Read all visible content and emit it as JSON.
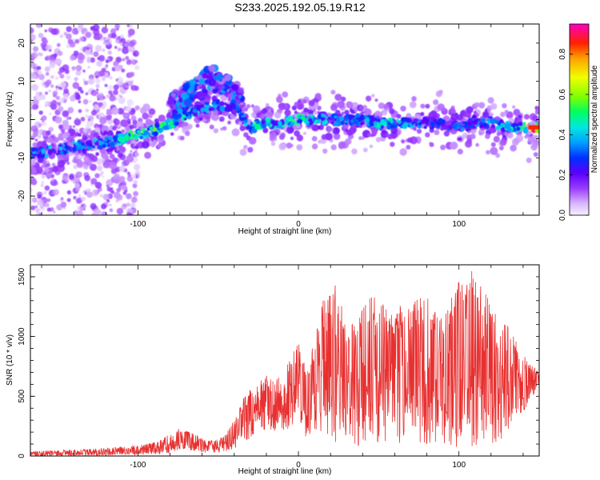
{
  "title": "S233.2025.192.05.19.R12",
  "chart_data": [
    {
      "type": "heatmap",
      "xlabel": "Height of straight line (km)",
      "ylabel": "Frequency (Hz)",
      "xlim": [
        -167,
        150
      ],
      "ylim": [
        -25,
        25
      ],
      "xticks": [
        "-100",
        "0",
        "100"
      ],
      "yticks": [
        "-20",
        "-10",
        "0",
        "10",
        "20"
      ],
      "colorbar": {
        "label": "Normalized spectral amplitude",
        "range": [
          0,
          0.95
        ],
        "ticks": [
          "0.0",
          "0.2",
          "0.4",
          "0.6",
          "0.8"
        ]
      },
      "ridge": {
        "x": [
          -167,
          -150,
          -140,
          -120,
          -110,
          -100,
          -90,
          -80,
          -70,
          -60,
          -50,
          -40,
          -30,
          -20,
          -10,
          0,
          10,
          20,
          30,
          40,
          50,
          60,
          70,
          80,
          90,
          100,
          110,
          120,
          130,
          140,
          145
        ],
        "frequency": [
          -9,
          -8,
          -7,
          -6,
          -5,
          -4,
          -3,
          -1,
          1,
          3,
          4,
          3,
          -2,
          -1,
          -1,
          0,
          0,
          0,
          0,
          0,
          -1,
          -1,
          -1,
          -1,
          -1,
          -2,
          -1,
          -1,
          -2,
          -2,
          -2
        ],
        "peak_amplitude": [
          0.35,
          0.35,
          0.3,
          0.4,
          0.5,
          0.55,
          0.55,
          0.5,
          0.45,
          0.4,
          0.35,
          0.35,
          0.5,
          0.5,
          0.45,
          0.5,
          0.45,
          0.4,
          0.35,
          0.35,
          0.5,
          0.45,
          0.4,
          0.35,
          0.3,
          0.35,
          0.35,
          0.4,
          0.45,
          0.5,
          0.9
        ]
      },
      "branch": {
        "x": [
          -80,
          -70,
          -60,
          -55,
          -50,
          -45,
          -40,
          -35
        ],
        "frequency": [
          3,
          6,
          9,
          11,
          10,
          9,
          7,
          5
        ]
      }
    },
    {
      "type": "line",
      "xlabel": "Height of straight line (km)",
      "ylabel": "SNR (10 * v/v)",
      "xlim": [
        -167,
        150
      ],
      "ylim": [
        0,
        1600
      ],
      "xticks": [
        "-100",
        "0",
        "100"
      ],
      "yticks": [
        "0",
        "500",
        "1000",
        "1500"
      ],
      "color": "#e83030",
      "x": [
        -167,
        -150,
        -140,
        -130,
        -120,
        -110,
        -100,
        -90,
        -80,
        -75,
        -70,
        -65,
        -60,
        -55,
        -50,
        -45,
        -40,
        -35,
        -30,
        -25,
        -20,
        -15,
        -10,
        -5,
        0,
        5,
        10,
        15,
        20,
        25,
        30,
        40,
        50,
        60,
        70,
        80,
        90,
        100,
        110,
        120,
        130,
        140,
        150
      ],
      "y": [
        20,
        25,
        30,
        30,
        35,
        40,
        45,
        55,
        80,
        140,
        200,
        150,
        110,
        90,
        80,
        100,
        150,
        300,
        380,
        480,
        420,
        460,
        430,
        520,
        580,
        520,
        560,
        680,
        900,
        1050,
        780,
        1000,
        950,
        850,
        900,
        950,
        880,
        1050,
        1100,
        950,
        850,
        700,
        680
      ],
      "y_envelope_max": [
        40,
        50,
        55,
        60,
        70,
        80,
        90,
        120,
        180,
        230,
        210,
        190,
        150,
        130,
        140,
        180,
        320,
        480,
        560,
        620,
        720,
        640,
        680,
        820,
        950,
        760,
        980,
        1300,
        1400,
        1450,
        1000,
        1300,
        1350,
        1250,
        1300,
        1350,
        1200,
        1500,
        1600,
        1250,
        1100,
        850,
        700
      ],
      "y_envelope_min": [
        0,
        0,
        0,
        0,
        5,
        10,
        10,
        15,
        25,
        40,
        60,
        40,
        30,
        25,
        30,
        40,
        60,
        100,
        150,
        220,
        180,
        200,
        180,
        250,
        300,
        150,
        200,
        150,
        50,
        100,
        120,
        60,
        80,
        100,
        120,
        90,
        100,
        60,
        80,
        100,
        150,
        350,
        600
      ]
    }
  ]
}
